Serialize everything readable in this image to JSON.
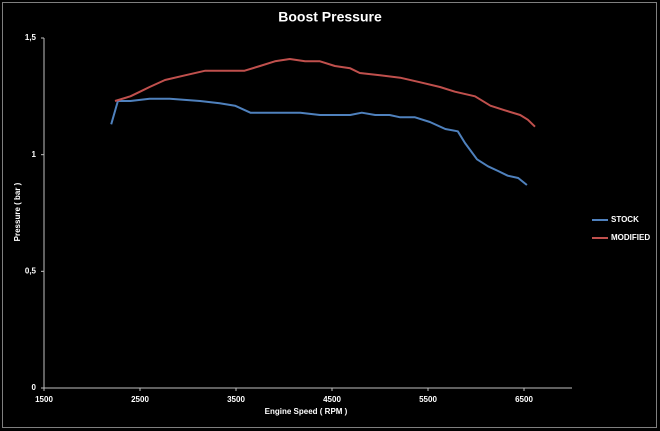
{
  "chart_data": {
    "type": "line",
    "title": "Boost Pressure",
    "x_label": "Engine Speed ( RPM )",
    "y_label": "Pressure ( bar )",
    "xlim": [
      1500,
      7000
    ],
    "xticks": [
      1500,
      2500,
      3500,
      4500,
      5500,
      6500
    ],
    "ylim": [
      0,
      1.5
    ],
    "yticks": [
      0,
      {
        "value": 0.5,
        "label": "0,5"
      },
      1,
      {
        "value": 1.5,
        "label": "1,5"
      }
    ],
    "legend": "right",
    "series": [
      {
        "name": "STOCK",
        "color": "#4f81bd",
        "x": [
          2200,
          2270,
          2400,
          2600,
          2810,
          3125,
          3330,
          3490,
          3650,
          3850,
          4170,
          4375,
          4690,
          4810,
          4950,
          5100,
          5210,
          5365,
          5520,
          5680,
          5810,
          5885,
          6010,
          6125,
          6230,
          6330,
          6440,
          6530
        ],
        "values": [
          1.13,
          1.23,
          1.23,
          1.24,
          1.24,
          1.23,
          1.22,
          1.21,
          1.18,
          1.18,
          1.18,
          1.17,
          1.17,
          1.18,
          1.17,
          1.17,
          1.16,
          1.16,
          1.14,
          1.11,
          1.1,
          1.05,
          0.98,
          0.95,
          0.93,
          0.91,
          0.9,
          0.87
        ]
      },
      {
        "name": "MODIFIED",
        "color": "#c0504d",
        "x": [
          2240,
          2400,
          2500,
          2600,
          2760,
          2970,
          3180,
          3385,
          3590,
          3750,
          3905,
          4060,
          4220,
          4375,
          4530,
          4690,
          4790,
          5000,
          5210,
          5420,
          5625,
          5780,
          5990,
          6150,
          6300,
          6460,
          6540,
          6615
        ],
        "values": [
          1.23,
          1.25,
          1.27,
          1.29,
          1.32,
          1.34,
          1.36,
          1.36,
          1.36,
          1.38,
          1.4,
          1.41,
          1.4,
          1.4,
          1.38,
          1.37,
          1.35,
          1.34,
          1.33,
          1.31,
          1.29,
          1.27,
          1.25,
          1.21,
          1.19,
          1.17,
          1.15,
          1.12
        ]
      }
    ]
  }
}
